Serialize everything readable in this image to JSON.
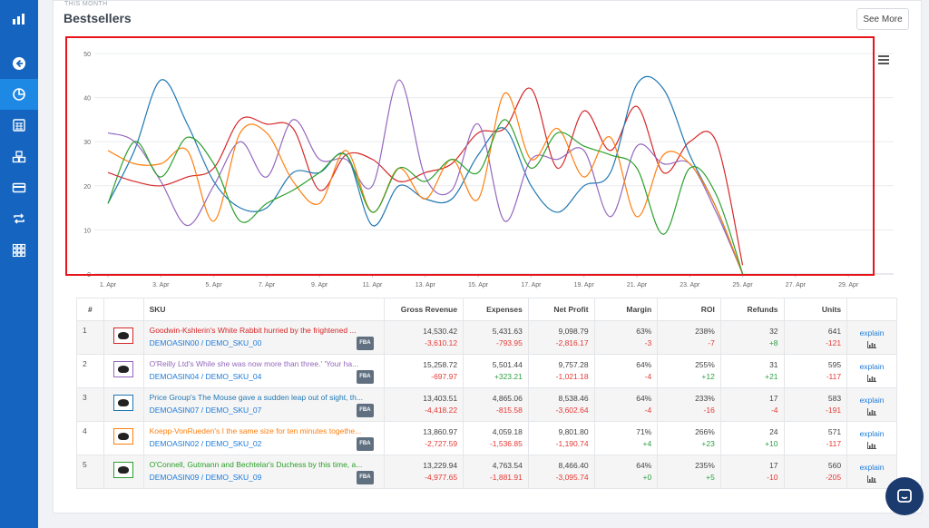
{
  "header": {
    "eyebrow": "THIS MONTH",
    "title": "Bestsellers",
    "see_more": "See More"
  },
  "sidebar": {
    "items": [
      "logo-icon",
      "back-icon",
      "pie-chart-icon",
      "calculator-icon",
      "boxes-icon",
      "credit-card-icon",
      "repeat-icon",
      "grid-icon"
    ]
  },
  "colors": {
    "sidebar": "#1565c0",
    "highlight": "#e8141b",
    "red": "#d62728",
    "blue": "#1f77b4",
    "purple": "#9467bd",
    "orange": "#ff7f0e",
    "green": "#2ca02c"
  },
  "chart_data": {
    "type": "line",
    "x_labels": [
      "1. Apr",
      "3. Apr",
      "5. Apr",
      "7. Apr",
      "9. Apr",
      "11. Apr",
      "13. Apr",
      "15. Apr",
      "17. Apr",
      "19. Apr",
      "21. Apr",
      "23. Apr",
      "25. Apr",
      "27. Apr",
      "29. Apr"
    ],
    "ylim": [
      0,
      50
    ],
    "y_ticks": [
      0,
      10,
      20,
      30,
      40,
      50
    ],
    "days": [
      1,
      2,
      3,
      4,
      5,
      6,
      7,
      8,
      9,
      10,
      11,
      12,
      13,
      14,
      15,
      16,
      17,
      18,
      19,
      20,
      21,
      22,
      23,
      24,
      25
    ],
    "series": [
      {
        "color": "#d62728",
        "values": [
          23,
          21,
          20,
          22,
          24,
          35,
          34,
          33,
          19,
          27,
          26,
          21,
          23,
          25,
          32,
          33,
          42,
          24,
          37,
          28,
          38,
          23,
          30,
          30,
          2
        ]
      },
      {
        "color": "#1f77b4",
        "values": [
          16,
          28,
          44,
          34,
          21,
          15,
          15,
          23,
          23,
          27,
          11,
          20,
          17,
          17,
          27,
          33,
          20,
          14,
          20,
          23,
          43,
          42,
          27,
          15,
          0
        ]
      },
      {
        "color": "#9467bd",
        "values": [
          32,
          30,
          21,
          11,
          20,
          30,
          22,
          35,
          26,
          26,
          20,
          44,
          22,
          19,
          34,
          12,
          26,
          26,
          28,
          13,
          29,
          25,
          25,
          14,
          0
        ]
      },
      {
        "color": "#ff7f0e",
        "values": [
          28,
          25,
          25,
          28,
          12,
          32,
          32,
          21,
          16,
          28,
          14,
          24,
          17,
          26,
          17,
          41,
          26,
          33,
          22,
          31,
          13,
          27,
          25,
          15,
          0
        ]
      },
      {
        "color": "#2ca02c",
        "values": [
          16,
          30,
          22,
          31,
          25,
          12,
          16,
          19,
          23,
          27,
          14,
          24,
          21,
          26,
          23,
          35,
          24,
          32,
          29,
          27,
          24,
          9,
          24,
          18,
          0
        ]
      }
    ]
  },
  "table": {
    "headers": [
      "#",
      "",
      "SKU",
      "Gross Revenue",
      "Expenses",
      "Net Profit",
      "Margin",
      "ROI",
      "Refunds",
      "Units",
      ""
    ],
    "rows": [
      {
        "num": "1",
        "color": "#d62728",
        "title": "Goodwin-Kshlerin's White Rabbit hurried by the frightened ...",
        "asin": "DEMOASIN00",
        "sku": "DEMO_SKU_00",
        "fba": "FBA",
        "gross": "14,530.42",
        "gross_d": "-3,610.12",
        "exp": "5,431.63",
        "exp_d": "-793.95",
        "net": "9,098.79",
        "net_d": "-2,816.17",
        "margin": "63%",
        "margin_d": "-3",
        "roi": "238%",
        "roi_d": "-7",
        "ref": "32",
        "ref_d": "+8",
        "units": "641",
        "units_d": "-121",
        "explain": "explain"
      },
      {
        "num": "2",
        "color": "#9467bd",
        "title": "O'Reilly Ltd's While she was now more than three.' 'Your ha...",
        "asin": "DEMOASIN04",
        "sku": "DEMO_SKU_04",
        "fba": "FBA",
        "gross": "15,258.72",
        "gross_d": "-697.97",
        "exp": "5,501.44",
        "exp_d": "+323.21",
        "net": "9,757.28",
        "net_d": "-1,021.18",
        "margin": "64%",
        "margin_d": "-4",
        "roi": "255%",
        "roi_d": "+12",
        "ref": "31",
        "ref_d": "+21",
        "units": "595",
        "units_d": "-117",
        "explain": "explain"
      },
      {
        "num": "3",
        "color": "#1f77b4",
        "title": "Price Group's The Mouse gave a sudden leap out of sight, th...",
        "asin": "DEMOASIN07",
        "sku": "DEMO_SKU_07",
        "fba": "FBA",
        "gross": "13,403.51",
        "gross_d": "-4,418.22",
        "exp": "4,865.06",
        "exp_d": "-815.58",
        "net": "8,538.46",
        "net_d": "-3,602.64",
        "margin": "64%",
        "margin_d": "-4",
        "roi": "233%",
        "roi_d": "-16",
        "ref": "17",
        "ref_d": "-4",
        "units": "583",
        "units_d": "-191",
        "explain": "explain"
      },
      {
        "num": "4",
        "color": "#ff7f0e",
        "title": "Koepp-VonRueden's I the same size for ten minutes togethe...",
        "asin": "DEMOASIN02",
        "sku": "DEMO_SKU_02",
        "fba": "FBA",
        "gross": "13,860.97",
        "gross_d": "-2,727.59",
        "exp": "4,059.18",
        "exp_d": "-1,536.85",
        "net": "9,801.80",
        "net_d": "-1,190.74",
        "margin": "71%",
        "margin_d": "+4",
        "roi": "266%",
        "roi_d": "+23",
        "ref": "24",
        "ref_d": "+10",
        "units": "571",
        "units_d": "-117",
        "explain": "explain"
      },
      {
        "num": "5",
        "color": "#2ca02c",
        "title": "O'Connell, Gutmann and Bechtelar's Duchess by this time, a...",
        "asin": "DEMOASIN09",
        "sku": "DEMO_SKU_09",
        "fba": "FBA",
        "gross": "13,229.94",
        "gross_d": "-4,977.65",
        "exp": "4,763.54",
        "exp_d": "-1,881.91",
        "net": "8,466.40",
        "net_d": "-3,095.74",
        "margin": "64%",
        "margin_d": "+0",
        "roi": "235%",
        "roi_d": "+5",
        "ref": "17",
        "ref_d": "-10",
        "units": "560",
        "units_d": "-205",
        "explain": "explain"
      }
    ]
  }
}
